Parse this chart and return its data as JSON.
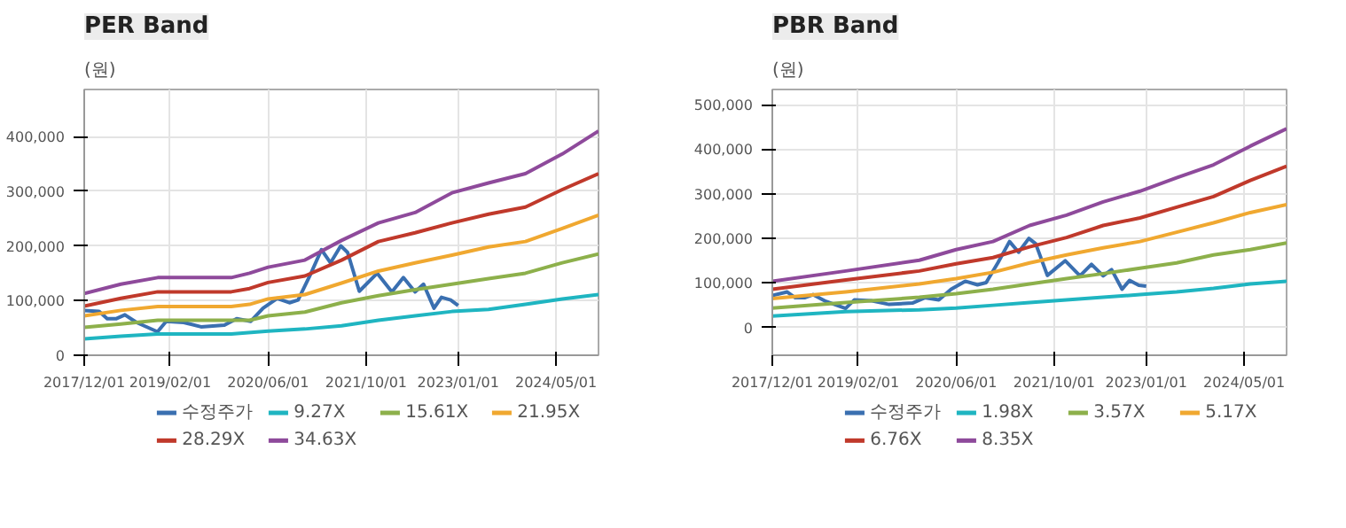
{
  "chart_data": [
    {
      "type": "line",
      "title": "PER Band",
      "ylabel": "(원)",
      "legend": "bottom",
      "grid": true,
      "line_style": "solid",
      "xlim": [
        "2017-12-01",
        "2024-11-28"
      ],
      "ylim": [
        0,
        486000
      ],
      "xticks": [
        {
          "value": "2017-12-01",
          "label": "2017/12/01"
        },
        {
          "value": "2019-02-01",
          "label": "2019/02/01"
        },
        {
          "value": "2020-06-01",
          "label": "2020/06/01"
        },
        {
          "value": "2021-10-01",
          "label": "2021/10/01"
        },
        {
          "value": "2023-01-01",
          "label": "2023/01/01"
        },
        {
          "value": "2024-05-01",
          "label": "2024/05/01"
        }
      ],
      "yticks": [
        {
          "value": 0,
          "label": "0"
        },
        {
          "value": 100000,
          "label": "100,000"
        },
        {
          "value": 200000,
          "label": "200,000"
        },
        {
          "value": 300000,
          "label": "300,000"
        },
        {
          "value": 400000,
          "label": "400,000"
        }
      ],
      "series": [
        {
          "name": "수정주가",
          "color": "#3a6fb0",
          "x": [
            "2017-12-01",
            "2018-02-13",
            "2018-03-25",
            "2018-05-10",
            "2018-06-21",
            "2018-08-18",
            "2018-11-30",
            "2019-01-12",
            "2019-04-10",
            "2019-07-04",
            "2019-10-28",
            "2019-12-28",
            "2020-03-07",
            "2020-05-07",
            "2020-07-16",
            "2020-09-15",
            "2020-10-28",
            "2020-12-25",
            "2021-02-21",
            "2021-04-07",
            "2021-05-28",
            "2021-07-01",
            "2021-08-28",
            "2021-11-25",
            "2022-02-06",
            "2022-04-04",
            "2022-06-01",
            "2022-07-13",
            "2022-09-03",
            "2022-10-10",
            "2022-11-25",
            "2023-01-01"
          ],
          "values": [
            82000,
            80000,
            67000,
            67000,
            74000,
            60000,
            43000,
            62000,
            60000,
            52000,
            55000,
            67000,
            62000,
            86000,
            104000,
            96000,
            101000,
            145000,
            193000,
            169000,
            200000,
            188000,
            117000,
            150000,
            116000,
            142000,
            116000,
            130000,
            86000,
            106000,
            101000,
            91000
          ]
        },
        {
          "name": "9.27X",
          "color": "#1fb5c1",
          "x": [
            "2017-12-01",
            "2018-06-01",
            "2018-12-01",
            "2019-12-01",
            "2020-06-01",
            "2020-12-01",
            "2021-06-01",
            "2021-12-01",
            "2022-06-01",
            "2022-12-01",
            "2023-06-01",
            "2023-12-01",
            "2024-06-01",
            "2024-11-28"
          ],
          "values": [
            30000,
            35000,
            39000,
            39000,
            44000,
            48000,
            54000,
            64000,
            72000,
            80000,
            84000,
            93000,
            103000,
            111000
          ]
        },
        {
          "name": "15.61X",
          "color": "#8db04b",
          "x": [
            "2017-12-01",
            "2018-06-01",
            "2018-12-01",
            "2020-03-01",
            "2020-06-01",
            "2020-12-01",
            "2021-06-01",
            "2021-12-01",
            "2022-06-01",
            "2022-12-01",
            "2023-06-01",
            "2023-12-01",
            "2024-06-01",
            "2024-11-28"
          ],
          "values": [
            51000,
            57000,
            64000,
            64000,
            72000,
            79000,
            96000,
            109000,
            120000,
            130000,
            140000,
            150000,
            169000,
            185000
          ]
        },
        {
          "name": "21.95X",
          "color": "#f0a830",
          "x": [
            "2017-12-01",
            "2018-06-01",
            "2018-12-01",
            "2019-12-01",
            "2020-03-01",
            "2020-06-01",
            "2020-12-01",
            "2021-06-01",
            "2021-12-01",
            "2022-06-01",
            "2022-12-01",
            "2023-06-01",
            "2023-12-01",
            "2024-06-01",
            "2024-11-28"
          ],
          "values": [
            72000,
            82000,
            89000,
            89000,
            93000,
            103000,
            111000,
            132000,
            154000,
            169000,
            183000,
            198000,
            208000,
            232000,
            256000
          ]
        },
        {
          "name": "28.29X",
          "color": "#c0392b",
          "x": [
            "2017-12-01",
            "2018-06-01",
            "2018-12-01",
            "2019-12-01",
            "2020-03-01",
            "2020-06-01",
            "2020-12-01",
            "2021-06-01",
            "2021-12-01",
            "2022-06-01",
            "2022-12-01",
            "2023-06-01",
            "2023-12-01",
            "2024-06-01",
            "2024-11-28"
          ],
          "values": [
            90000,
            104000,
            116000,
            116000,
            122000,
            133000,
            145000,
            174000,
            208000,
            224000,
            242000,
            258000,
            271000,
            303000,
            332000
          ]
        },
        {
          "name": "34.63X",
          "color": "#8e4a9b",
          "x": [
            "2017-12-01",
            "2018-06-01",
            "2018-12-01",
            "2019-12-01",
            "2020-03-01",
            "2020-06-01",
            "2020-12-01",
            "2021-06-01",
            "2021-12-01",
            "2022-06-01",
            "2022-12-01",
            "2023-06-01",
            "2023-12-01",
            "2024-06-01",
            "2024-11-28"
          ],
          "values": [
            113000,
            130000,
            142000,
            142000,
            150000,
            161000,
            174000,
            210000,
            242000,
            261000,
            297000,
            315000,
            332000,
            368000,
            410000
          ]
        }
      ]
    },
    {
      "type": "line",
      "title": "PBR Band",
      "ylabel": "(원)",
      "legend": "bottom",
      "grid": true,
      "line_style": "solid",
      "xlim": [
        "2017-12-01",
        "2024-11-28"
      ],
      "ylim": [
        -62000,
        534000
      ],
      "xticks": [
        {
          "value": "2017-12-01",
          "label": "2017/12/01"
        },
        {
          "value": "2019-02-01",
          "label": "2019/02/01"
        },
        {
          "value": "2020-06-01",
          "label": "2020/06/01"
        },
        {
          "value": "2021-10-01",
          "label": "2021/10/01"
        },
        {
          "value": "2023-01-01",
          "label": "2023/01/01"
        },
        {
          "value": "2024-05-01",
          "label": "2024/05/01"
        }
      ],
      "yticks": [
        {
          "value": 0,
          "label": "0"
        },
        {
          "value": 100000,
          "label": "100,000"
        },
        {
          "value": 200000,
          "label": "200,000"
        },
        {
          "value": 300000,
          "label": "300,000"
        },
        {
          "value": 400000,
          "label": "400,000"
        },
        {
          "value": 500000,
          "label": "500,000"
        }
      ],
      "series": [
        {
          "name": "수정주가",
          "color": "#3a6fb0",
          "x": [
            "2017-12-01",
            "2018-02-13",
            "2018-03-25",
            "2018-05-10",
            "2018-06-21",
            "2018-08-18",
            "2018-11-30",
            "2019-01-12",
            "2019-04-10",
            "2019-07-04",
            "2019-10-28",
            "2019-12-28",
            "2020-03-07",
            "2020-05-07",
            "2020-07-16",
            "2020-09-15",
            "2020-10-28",
            "2020-12-25",
            "2021-02-21",
            "2021-04-07",
            "2021-05-28",
            "2021-07-01",
            "2021-08-28",
            "2021-11-25",
            "2022-02-06",
            "2022-04-04",
            "2022-06-01",
            "2022-07-13",
            "2022-09-03",
            "2022-10-10",
            "2022-11-25",
            "2023-01-01"
          ],
          "values": [
            72000,
            80000,
            67000,
            67000,
            74000,
            60000,
            43000,
            62000,
            60000,
            52000,
            55000,
            67000,
            62000,
            86000,
            104000,
            96000,
            101000,
            145000,
            193000,
            169000,
            200000,
            188000,
            117000,
            150000,
            116000,
            142000,
            116000,
            130000,
            86000,
            106000,
            95000,
            93000
          ]
        },
        {
          "name": "1.98X",
          "color": "#1fb5c1",
          "x": [
            "2017-12-01",
            "2018-12-01",
            "2019-12-01",
            "2020-06-01",
            "2020-12-01",
            "2021-06-01",
            "2021-12-01",
            "2022-06-01",
            "2022-12-01",
            "2023-06-01",
            "2023-12-01",
            "2024-06-01",
            "2024-11-28"
          ],
          "values": [
            26000,
            36000,
            40000,
            44000,
            50000,
            56000,
            62000,
            68000,
            74000,
            80000,
            88000,
            98000,
            104000
          ]
        },
        {
          "name": "3.57X",
          "color": "#8db04b",
          "x": [
            "2017-12-01",
            "2018-12-01",
            "2019-12-01",
            "2020-06-01",
            "2020-12-01",
            "2021-06-01",
            "2021-12-01",
            "2022-06-01",
            "2022-12-01",
            "2023-06-01",
            "2023-12-01",
            "2024-06-01",
            "2024-11-28"
          ],
          "values": [
            44000,
            56000,
            68000,
            76000,
            86000,
            98000,
            110000,
            121000,
            133000,
            145000,
            163000,
            175000,
            190000
          ]
        },
        {
          "name": "5.17X",
          "color": "#f0a830",
          "x": [
            "2017-12-01",
            "2018-12-01",
            "2019-12-01",
            "2020-06-01",
            "2020-12-01",
            "2021-06-01",
            "2021-12-01",
            "2022-06-01",
            "2022-12-01",
            "2023-06-01",
            "2023-12-01",
            "2024-06-01",
            "2024-11-28"
          ],
          "values": [
            65000,
            80000,
            98000,
            110000,
            124000,
            145000,
            163000,
            179000,
            193000,
            214000,
            235000,
            258000,
            276000
          ]
        },
        {
          "name": "6.76X",
          "color": "#c0392b",
          "x": [
            "2017-12-01",
            "2018-12-01",
            "2019-12-01",
            "2020-06-01",
            "2020-12-01",
            "2021-06-01",
            "2021-12-01",
            "2022-06-01",
            "2022-12-01",
            "2023-06-01",
            "2023-12-01",
            "2024-06-01",
            "2024-11-28"
          ],
          "values": [
            86000,
            107000,
            127000,
            143000,
            157000,
            181000,
            202000,
            229000,
            246000,
            270000,
            294000,
            330000,
            362000
          ]
        },
        {
          "name": "8.35X",
          "color": "#8e4a9b",
          "x": [
            "2017-12-01",
            "2018-12-01",
            "2019-12-01",
            "2020-06-01",
            "2020-12-01",
            "2021-06-01",
            "2021-12-01",
            "2022-06-01",
            "2022-12-01",
            "2023-06-01",
            "2023-12-01",
            "2024-06-01",
            "2024-11-28"
          ],
          "values": [
            104000,
            127000,
            151000,
            175000,
            193000,
            229000,
            252000,
            282000,
            306000,
            336000,
            365000,
            407000,
            446000
          ]
        }
      ]
    }
  ]
}
